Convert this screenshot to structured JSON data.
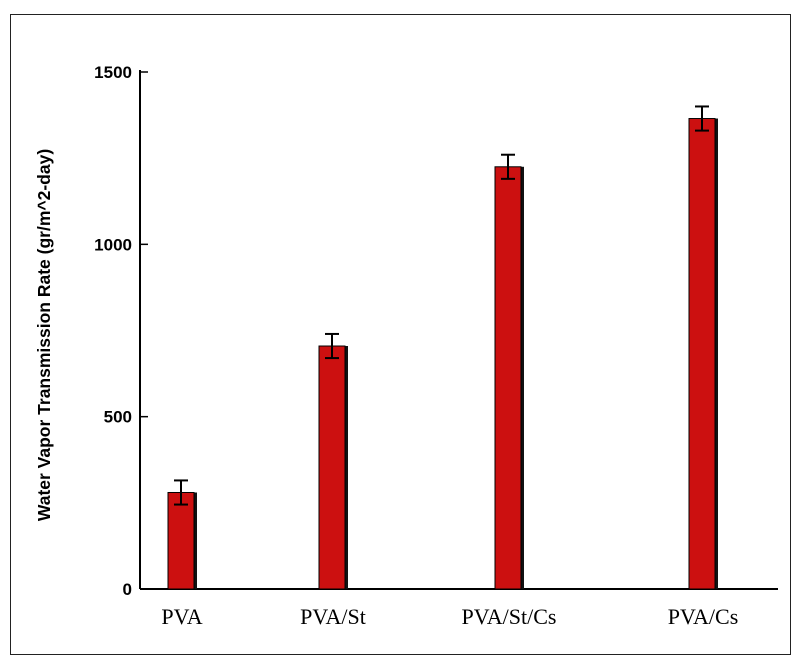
{
  "chart_data": {
    "type": "bar",
    "title": "",
    "xlabel": "",
    "ylabel": "Water Vapor Transmission Rate (gr/m^2-day)",
    "categories": [
      "PVA",
      "PVA/St",
      "PVA/St/Cs",
      "PVA/Cs"
    ],
    "values": [
      280,
      705,
      1225,
      1365
    ],
    "errors": [
      35,
      35,
      35,
      35
    ],
    "ylim": [
      0,
      1500
    ],
    "yticks": [
      0,
      500,
      1000,
      1500
    ],
    "bar_color": "#cc1010",
    "grid": false,
    "legend": "none"
  }
}
